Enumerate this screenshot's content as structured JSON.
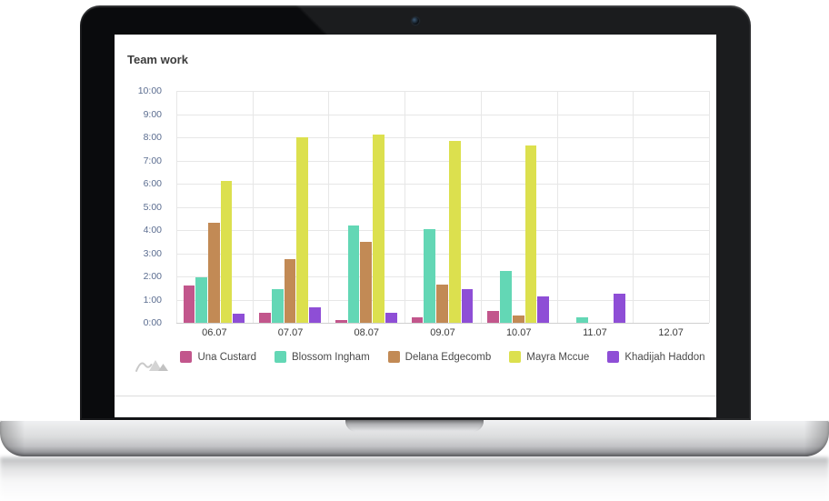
{
  "window": {
    "background": "#ffffff"
  },
  "branding": {
    "watermark_icon": "amcharts-logo"
  },
  "chart_data": {
    "type": "bar",
    "title": "Team work",
    "xlabel": "",
    "ylabel": "",
    "categories": [
      "06.07",
      "07.07",
      "08.07",
      "09.07",
      "10.07",
      "11.07",
      "12.07"
    ],
    "y_ticks": [
      "10:00",
      "9:00",
      "8:00",
      "7:00",
      "6:00",
      "5:00",
      "4:00",
      "3:00",
      "2:00",
      "1:00",
      "0:00"
    ],
    "ylim": [
      0,
      10
    ],
    "grid": true,
    "legend_position": "bottom",
    "series": [
      {
        "name": "Una Custard",
        "color": "#c2568c",
        "values": [
          1.6,
          0.45,
          0.1,
          0.25,
          0.5,
          0,
          0
        ]
      },
      {
        "name": "Blossom Ingham",
        "color": "#63d7b5",
        "values": [
          1.95,
          1.45,
          4.2,
          4.05,
          2.25,
          0.25,
          0
        ]
      },
      {
        "name": "Delana Edgecomb",
        "color": "#c28a55",
        "values": [
          4.3,
          2.75,
          3.5,
          1.65,
          0.3,
          0,
          0
        ]
      },
      {
        "name": "Mayra Mccue",
        "color": "#dce04e",
        "values": [
          6.1,
          8.0,
          8.1,
          7.85,
          7.65,
          0,
          0
        ]
      },
      {
        "name": "Khadijah Haddon",
        "color": "#8e4ed6",
        "values": [
          0.4,
          0.65,
          0.45,
          1.45,
          1.15,
          1.25,
          0
        ]
      }
    ]
  }
}
